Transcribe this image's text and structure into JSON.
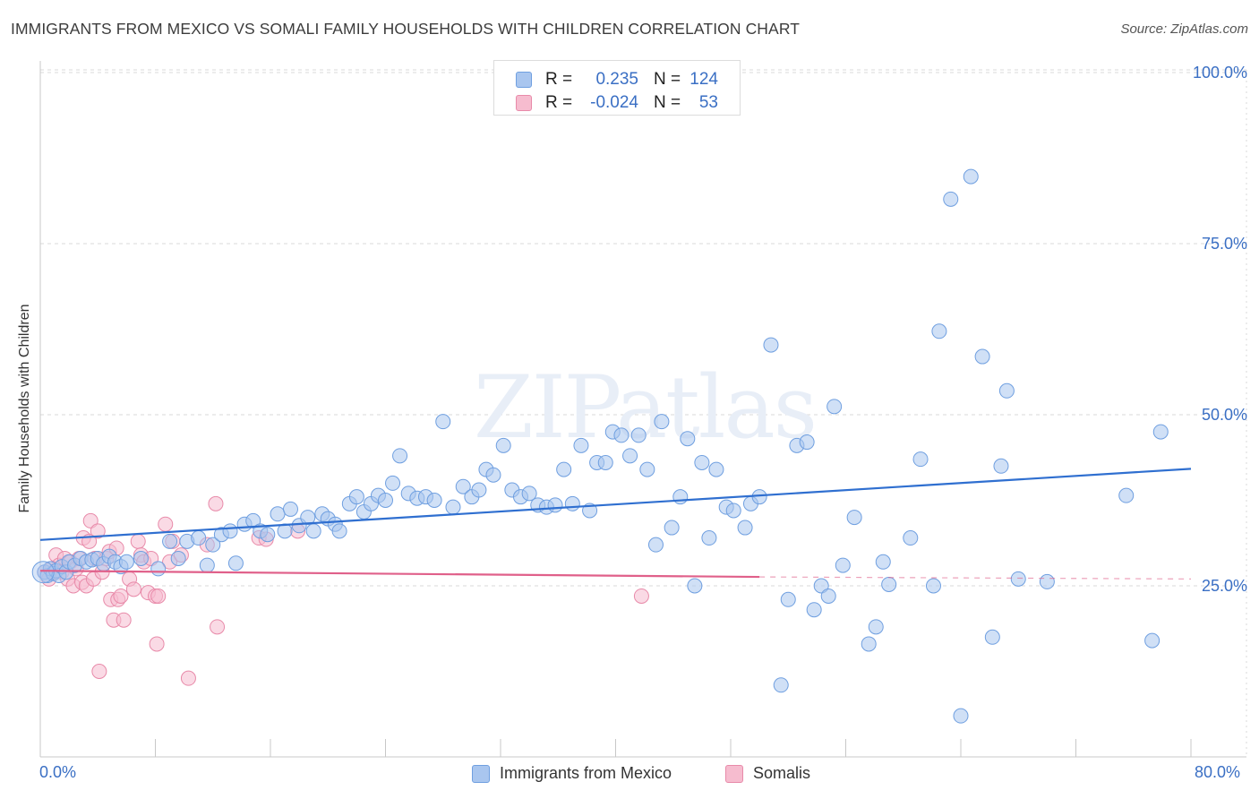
{
  "header": {
    "title": "IMMIGRANTS FROM MEXICO VS SOMALI FAMILY HOUSEHOLDS WITH CHILDREN CORRELATION CHART",
    "source": "Source: ZipAtlas.com"
  },
  "watermark": "ZIPatlas",
  "stats": [
    {
      "r_label": "R =",
      "r_value": "0.235",
      "n_label": "N =",
      "n_value": "124",
      "color": "#a9c6ef",
      "border": "#6f9fe0"
    },
    {
      "r_label": "R =",
      "r_value": "-0.024",
      "n_label": "N =",
      "n_value": "53",
      "color": "#f6bccf",
      "border": "#e88aa9"
    }
  ],
  "legend": [
    {
      "label": "Immigrants from Mexico",
      "color": "#a9c6ef",
      "border": "#6f9fe0"
    },
    {
      "label": "Somalis",
      "color": "#f6bccf",
      "border": "#e88aa9"
    }
  ],
  "colors": {
    "blue_fill": "#a9c6ef",
    "blue_stroke": "#6f9fe0",
    "blue_line": "#2f6fd0",
    "pink_fill": "#f6bccf",
    "pink_stroke": "#e88aa9",
    "pink_line": "#e0608a",
    "axis_label": "#3a6fc4",
    "grid": "#d9d9d9"
  },
  "chart_data": {
    "type": "scatter",
    "title": "IMMIGRANTS FROM MEXICO VS SOMALI FAMILY HOUSEHOLDS WITH CHILDREN CORRELATION CHART",
    "xlabel": "",
    "ylabel": "Family Households with Children",
    "xlim": [
      0,
      80
    ],
    "ylim": [
      0,
      105
    ],
    "x_tick_labels": [
      "0.0%",
      "80.0%"
    ],
    "y_ticks": [
      25,
      50,
      75,
      100
    ],
    "y_tick_labels": [
      "25.0%",
      "50.0%",
      "75.0%",
      "100.0%"
    ],
    "grid": true,
    "legend_position": "bottom",
    "series": [
      {
        "name": "Immigrants from Mexico",
        "r": 0.235,
        "n": 124,
        "trend": {
          "x": [
            0,
            80
          ],
          "y": [
            31.7,
            42.1
          ],
          "style": "solid"
        },
        "points": [
          [
            0.3,
            27
          ],
          [
            0.5,
            26.5
          ],
          [
            0.7,
            27.5
          ],
          [
            0.9,
            26.8
          ],
          [
            1.1,
            27.2
          ],
          [
            1.3,
            26.5
          ],
          [
            1.5,
            27.8
          ],
          [
            1.8,
            27
          ],
          [
            2.0,
            28.5
          ],
          [
            2.4,
            28
          ],
          [
            2.8,
            29
          ],
          [
            3.2,
            28.5
          ],
          [
            3.6,
            28.8
          ],
          [
            4.0,
            29
          ],
          [
            4.4,
            28.2
          ],
          [
            4.8,
            29.3
          ],
          [
            5.2,
            28.5
          ],
          [
            5.6,
            27.8
          ],
          [
            6.0,
            28.5
          ],
          [
            7.0,
            29
          ],
          [
            8.2,
            27.5
          ],
          [
            9.0,
            31.5
          ],
          [
            9.6,
            29
          ],
          [
            10.2,
            31.5
          ],
          [
            11.0,
            32
          ],
          [
            11.6,
            28
          ],
          [
            12.0,
            31
          ],
          [
            12.6,
            32.5
          ],
          [
            13.2,
            33
          ],
          [
            13.6,
            28.3
          ],
          [
            14.2,
            34
          ],
          [
            14.8,
            34.5
          ],
          [
            15.3,
            33
          ],
          [
            15.8,
            32.5
          ],
          [
            16.5,
            35.5
          ],
          [
            17.0,
            33
          ],
          [
            17.4,
            36.2
          ],
          [
            18.0,
            33.8
          ],
          [
            18.6,
            35
          ],
          [
            19.0,
            33
          ],
          [
            19.6,
            35.5
          ],
          [
            20.0,
            34.8
          ],
          [
            20.5,
            34
          ],
          [
            20.8,
            33
          ],
          [
            21.5,
            37
          ],
          [
            22.0,
            38
          ],
          [
            22.5,
            35.8
          ],
          [
            23.0,
            37
          ],
          [
            23.5,
            38.2
          ],
          [
            24.0,
            37.5
          ],
          [
            24.5,
            40
          ],
          [
            25.0,
            44
          ],
          [
            25.6,
            38.5
          ],
          [
            26.2,
            37.8
          ],
          [
            26.8,
            38
          ],
          [
            27.4,
            37.5
          ],
          [
            28.0,
            49
          ],
          [
            28.7,
            36.5
          ],
          [
            29.4,
            39.5
          ],
          [
            30.0,
            38
          ],
          [
            30.5,
            39
          ],
          [
            31.0,
            42
          ],
          [
            31.5,
            41.2
          ],
          [
            32.2,
            45.5
          ],
          [
            32.8,
            39
          ],
          [
            33.4,
            38
          ],
          [
            34.0,
            38.5
          ],
          [
            34.6,
            36.8
          ],
          [
            35.2,
            36.5
          ],
          [
            35.8,
            36.8
          ],
          [
            36.4,
            42
          ],
          [
            37.0,
            37
          ],
          [
            37.6,
            45.5
          ],
          [
            38.2,
            36
          ],
          [
            38.7,
            43
          ],
          [
            39.3,
            43
          ],
          [
            39.8,
            47.5
          ],
          [
            40.4,
            47
          ],
          [
            41.0,
            44
          ],
          [
            41.6,
            47
          ],
          [
            42.2,
            42
          ],
          [
            42.8,
            31
          ],
          [
            43.2,
            49
          ],
          [
            43.9,
            33.5
          ],
          [
            44.5,
            38
          ],
          [
            45.0,
            46.5
          ],
          [
            45.5,
            25
          ],
          [
            46.0,
            43
          ],
          [
            46.5,
            32
          ],
          [
            47.0,
            42
          ],
          [
            47.7,
            36.5
          ],
          [
            48.2,
            36
          ],
          [
            49.0,
            33.5
          ],
          [
            49.4,
            37
          ],
          [
            50.0,
            38
          ],
          [
            50.8,
            60.2
          ],
          [
            51.5,
            10.5
          ],
          [
            52.0,
            23
          ],
          [
            52.6,
            45.5
          ],
          [
            53.3,
            46
          ],
          [
            53.8,
            21.5
          ],
          [
            54.3,
            25
          ],
          [
            54.8,
            23.5
          ],
          [
            55.2,
            51.2
          ],
          [
            55.8,
            28
          ],
          [
            56.6,
            35
          ],
          [
            57.6,
            16.5
          ],
          [
            58.1,
            19
          ],
          [
            58.6,
            28.5
          ],
          [
            59.0,
            25.2
          ],
          [
            60.5,
            32
          ],
          [
            61.2,
            43.5
          ],
          [
            62.5,
            62.2
          ],
          [
            62.1,
            25
          ],
          [
            63.3,
            81.5
          ],
          [
            64.0,
            6
          ],
          [
            64.7,
            84.8
          ],
          [
            65.5,
            58.5
          ],
          [
            66.2,
            17.5
          ],
          [
            66.8,
            42.5
          ],
          [
            67.2,
            53.5
          ],
          [
            68.0,
            26
          ],
          [
            70.0,
            25.6
          ],
          [
            75.5,
            38.2
          ],
          [
            77.3,
            17
          ],
          [
            77.9,
            47.5
          ]
        ]
      },
      {
        "name": "Somalis",
        "r": -0.024,
        "n": 53,
        "trend": {
          "x": [
            0,
            50
          ],
          "y": [
            27.2,
            26.3
          ],
          "style": "solid",
          "dashed_extension": {
            "x": [
              50,
              80
            ],
            "y": [
              26.3,
              26
            ]
          }
        },
        "points": [
          [
            0.3,
            27
          ],
          [
            0.6,
            26
          ],
          [
            0.9,
            27
          ],
          [
            1.1,
            29.5
          ],
          [
            1.3,
            28
          ],
          [
            1.5,
            27
          ],
          [
            1.7,
            29
          ],
          [
            1.9,
            26
          ],
          [
            2.1,
            28.5
          ],
          [
            2.3,
            25
          ],
          [
            2.5,
            27.5
          ],
          [
            2.7,
            29
          ],
          [
            2.9,
            25.5
          ],
          [
            3.0,
            32
          ],
          [
            3.2,
            25
          ],
          [
            3.4,
            31.5
          ],
          [
            3.5,
            34.5
          ],
          [
            3.7,
            26
          ],
          [
            3.8,
            29
          ],
          [
            4.0,
            33
          ],
          [
            4.1,
            12.5
          ],
          [
            4.3,
            27
          ],
          [
            4.6,
            29
          ],
          [
            4.8,
            30
          ],
          [
            4.9,
            23
          ],
          [
            5.1,
            20
          ],
          [
            5.3,
            30.5
          ],
          [
            5.4,
            23
          ],
          [
            5.6,
            23.5
          ],
          [
            5.8,
            20
          ],
          [
            6.2,
            26
          ],
          [
            6.5,
            24.5
          ],
          [
            6.8,
            31.5
          ],
          [
            7.0,
            29.5
          ],
          [
            7.2,
            28.5
          ],
          [
            7.5,
            24
          ],
          [
            7.7,
            29
          ],
          [
            8.0,
            23.5
          ],
          [
            8.1,
            16.5
          ],
          [
            8.2,
            23.5
          ],
          [
            8.7,
            34
          ],
          [
            9.0,
            28.5
          ],
          [
            9.2,
            31.5
          ],
          [
            9.8,
            29.5
          ],
          [
            10.3,
            11.5
          ],
          [
            11.6,
            31
          ],
          [
            12.3,
            19
          ],
          [
            12.2,
            37
          ],
          [
            15.2,
            32
          ],
          [
            15.7,
            31.8
          ],
          [
            17.9,
            33
          ],
          [
            41.8,
            23.5
          ],
          [
            0.8,
            27.5
          ]
        ]
      }
    ]
  }
}
